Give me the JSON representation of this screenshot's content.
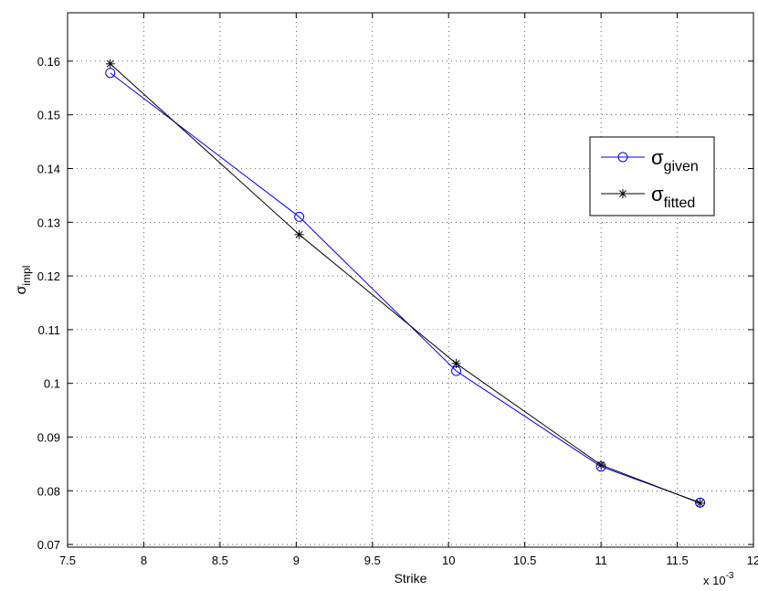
{
  "chart_data": {
    "type": "line",
    "title": "",
    "xlabel": "Strike",
    "ylabel": {
      "symbol": "σ",
      "subscript": "impl"
    },
    "x_multiplier": {
      "prefix": "x 10",
      "exponent": "-3"
    },
    "xlim": [
      7.5,
      12
    ],
    "ylim": [
      0.0695,
      0.169
    ],
    "x_ticks": [
      {
        "value": 7.5,
        "label": "7.5"
      },
      {
        "value": 8,
        "label": "8"
      },
      {
        "value": 8.5,
        "label": "8.5"
      },
      {
        "value": 9,
        "label": "9"
      },
      {
        "value": 9.5,
        "label": "9.5"
      },
      {
        "value": 10,
        "label": "10"
      },
      {
        "value": 10.5,
        "label": "10.5"
      },
      {
        "value": 11,
        "label": "11"
      },
      {
        "value": 11.5,
        "label": "11.5"
      },
      {
        "value": 12,
        "label": "12"
      }
    ],
    "y_ticks": [
      {
        "value": 0.07,
        "label": "0.07"
      },
      {
        "value": 0.08,
        "label": "0.08"
      },
      {
        "value": 0.09,
        "label": "0.09"
      },
      {
        "value": 0.1,
        "label": "0.1"
      },
      {
        "value": 0.11,
        "label": "0.11"
      },
      {
        "value": 0.12,
        "label": "0.12"
      },
      {
        "value": 0.13,
        "label": "0.13"
      },
      {
        "value": 0.14,
        "label": "0.14"
      },
      {
        "value": 0.15,
        "label": "0.15"
      },
      {
        "value": 0.16,
        "label": "0.16"
      }
    ],
    "grid": true,
    "legend_position": "right",
    "series": [
      {
        "label_symbol": "σ",
        "label_subscript": "given",
        "color": "#0000ff",
        "marker": "circle",
        "x": [
          7.78,
          9.02,
          10.05,
          11.0,
          11.65
        ],
        "y": [
          0.1578,
          0.131,
          0.1023,
          0.0845,
          0.0778
        ]
      },
      {
        "label_symbol": "σ",
        "label_subscript": "fitted",
        "color": "#000000",
        "marker": "asterisk",
        "x": [
          7.78,
          9.02,
          10.05,
          11.0,
          11.65
        ],
        "y": [
          0.1595,
          0.1277,
          0.1037,
          0.0848,
          0.0777
        ]
      }
    ]
  }
}
